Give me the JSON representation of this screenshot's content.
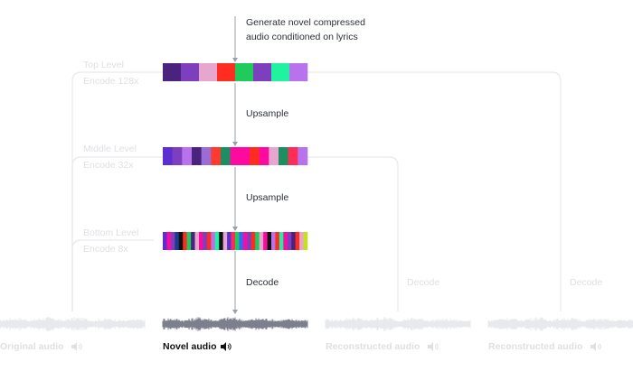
{
  "top_caption": [
    "Generate novel compressed",
    "audio conditioned on lyrics"
  ],
  "levels": [
    {
      "name": "Top Level",
      "encode_label": "Encode 128x",
      "codes": [
        "#4a237f",
        "#7e3fbf",
        "#e6a6cd",
        "#ff2d1f",
        "#1ecb5b",
        "#7e3fbf",
        "#1ff3a0",
        "#b872ec"
      ]
    },
    {
      "name": "Middle Level",
      "encode_label": "Encode 32x",
      "codes": [
        "#5b2fd1",
        "#7e3fbf",
        "#b872ec",
        "#4a237f",
        "#9b6bd6",
        "#ff3b30",
        "#1e8d5f",
        "#ff0aa0",
        "#ff0aa0",
        "#ff2d1f",
        "#ff0aa0",
        "#e6a6cd",
        "#1e8d5f",
        "#ff2d55",
        "#b872ec"
      ]
    },
    {
      "name": "Bottom Level",
      "encode_label": "Encode 8x",
      "codes": [
        "#5b2fd1",
        "#ff0aa0",
        "#7e3fbf",
        "#1e3a8a",
        "#111111",
        "#ff2d1f",
        "#1ecb5b",
        "#4a237f",
        "#e6a6cd",
        "#ff0aa0",
        "#7e3fbf",
        "#ff2d1f",
        "#b872ec",
        "#1ff3a0",
        "#111111",
        "#e6a6cd",
        "#5b2fd1",
        "#ff2d55",
        "#1ecb5b",
        "#3366ff",
        "#ff0aa0",
        "#7e3fbf",
        "#ff2d1f",
        "#1ecb5b",
        "#e6a6cd",
        "#ff0aa0",
        "#111111",
        "#b872ec",
        "#ff2d1f",
        "#1ff3a0",
        "#ff0aa0",
        "#7e3fbf",
        "#4a237f",
        "#ff2d1f",
        "#e6a6cd",
        "#c6e01e"
      ]
    }
  ],
  "steps": [
    "Upsample",
    "Upsample",
    "Decode"
  ],
  "side_decode_labels": [
    "Decode",
    "Decode"
  ],
  "waveforms": [
    {
      "label": "Original audio",
      "highlighted": false
    },
    {
      "label": "Novel audio",
      "highlighted": true
    },
    {
      "label": "Reconstructed audio",
      "highlighted": false
    },
    {
      "label": "Reconstructed audio",
      "highlighted": false
    }
  ],
  "speaker_icon": "speaker-icon",
  "colors": {
    "faded_text": "#dfe0e3",
    "faded_line": "#e8e9ec",
    "faded_wave": "#e6e7ea",
    "active_wave": "#6e7281",
    "active_text": "#111111",
    "step_text": "#2b2f3a",
    "arrow": "#9aa0a8"
  }
}
